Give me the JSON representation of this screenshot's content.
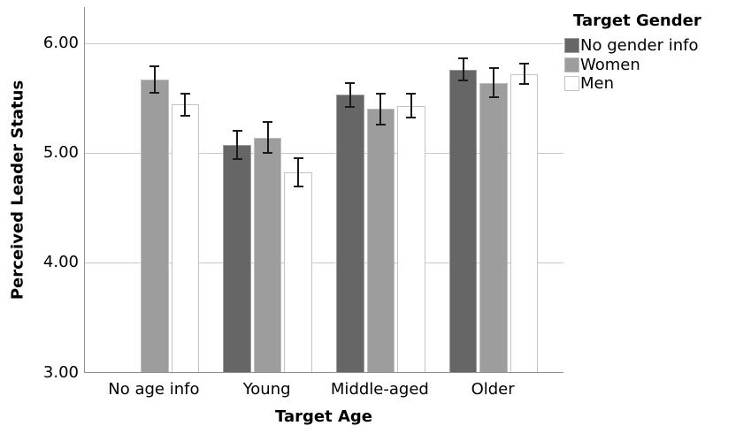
{
  "chart_data": {
    "type": "bar",
    "title": "",
    "xlabel": "Target Age",
    "ylabel": "Perceived Leader Status",
    "categories": [
      "No age info",
      "Young",
      "Middle-aged",
      "Older"
    ],
    "series": [
      {
        "name": "No gender info",
        "fill": "#666666",
        "border": "#a0a0a0",
        "values": [
          null,
          5.07,
          5.53,
          5.76
        ],
        "errors": [
          null,
          0.13,
          0.11,
          0.1
        ]
      },
      {
        "name": "Women",
        "fill": "#9d9d9d",
        "border": "#bebebe",
        "values": [
          5.67,
          5.14,
          5.4,
          5.64
        ],
        "errors": [
          0.12,
          0.14,
          0.14,
          0.13
        ]
      },
      {
        "name": "Men",
        "fill": "#ffffff",
        "border": "#c3c3c3",
        "values": [
          5.44,
          4.82,
          5.43,
          5.72
        ],
        "errors": [
          0.1,
          0.13,
          0.11,
          0.09
        ]
      }
    ],
    "ylim": [
      3.0,
      6.33
    ],
    "yticks": [
      {
        "value": 3.0,
        "label": "3.00"
      },
      {
        "value": 4.0,
        "label": "4.00"
      },
      {
        "value": 5.0,
        "label": "5.00"
      },
      {
        "value": 6.0,
        "label": "6.00"
      }
    ],
    "legend": {
      "title": "Target Gender",
      "position": "top-right"
    },
    "grid": "horizontal",
    "error_bars": true
  },
  "style": {
    "axis_color": "#8f8f8f",
    "grid_color": "#c9c9c9",
    "error_bar_color": "#1a1a1a",
    "text_color": "#000000",
    "background": "#ffffff"
  }
}
